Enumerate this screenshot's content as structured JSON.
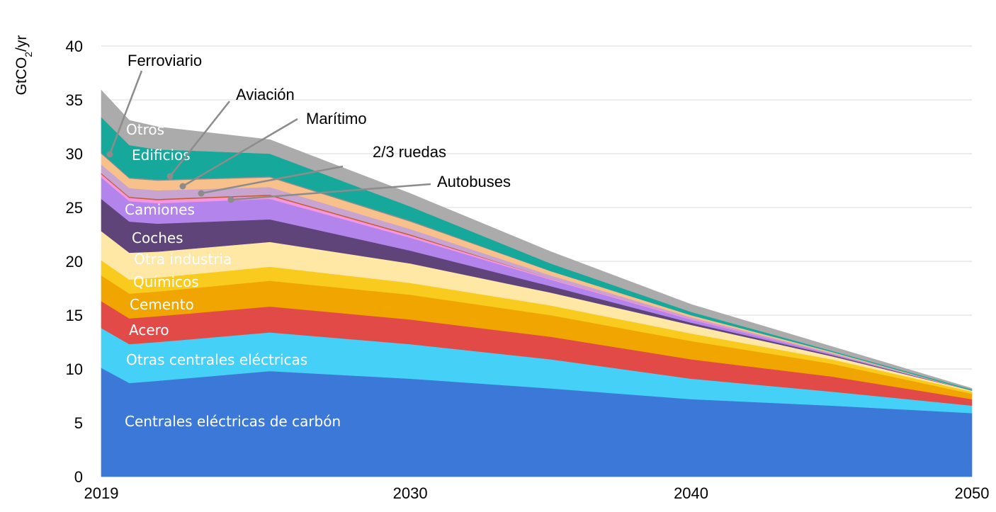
{
  "chart_data": {
    "type": "area",
    "stacked": true,
    "ylabel": "GtCO2/yr",
    "ylim": [
      0,
      40
    ],
    "yticks": [
      "0",
      "5",
      "10",
      "15",
      "20",
      "25",
      "30",
      "35",
      "40"
    ],
    "xlim": [
      2019,
      2050
    ],
    "xticks": [
      "2019",
      "2030",
      "2040",
      "2050"
    ],
    "grid": "horizontal",
    "x": [
      2019,
      2020,
      2021,
      2025,
      2030,
      2035,
      2040,
      2045,
      2050
    ],
    "series": [
      {
        "name": "Centrales eléctricas de carbón",
        "color": "#3C78D8",
        "values": [
          10.1,
          8.7,
          8.9,
          9.8,
          9.1,
          8.2,
          7.2,
          6.6,
          5.9
        ]
      },
      {
        "name": "Otras centrales eléctricas",
        "color": "#45D0F8",
        "values": [
          3.7,
          3.6,
          3.6,
          3.6,
          3.2,
          2.7,
          1.9,
          1.3,
          0.7
        ]
      },
      {
        "name": "Acero",
        "color": "#E24A48",
        "values": [
          2.5,
          2.4,
          2.4,
          2.4,
          2.3,
          2.1,
          1.8,
          1.4,
          0.6
        ]
      },
      {
        "name": "Cemento",
        "color": "#F0A500",
        "values": [
          2.4,
          2.3,
          2.3,
          2.4,
          2.3,
          2.0,
          1.7,
          1.2,
          0.5
        ]
      },
      {
        "name": "Químicos",
        "color": "#F9CB1F",
        "values": [
          1.4,
          1.3,
          1.3,
          1.3,
          1.1,
          0.9,
          0.7,
          0.4,
          0.2
        ]
      },
      {
        "name": "Otra industria",
        "color": "#FFE7A6",
        "values": [
          2.7,
          2.5,
          2.4,
          2.3,
          1.8,
          1.2,
          0.8,
          0.3,
          0.1
        ]
      },
      {
        "name": "Coches",
        "color": "#5E4478",
        "values": [
          3.0,
          2.9,
          2.6,
          2.1,
          1.2,
          0.6,
          0.2,
          0.1,
          0.0
        ]
      },
      {
        "name": "Camiones",
        "color": "#B384EC",
        "values": [
          2.0,
          1.9,
          1.9,
          1.9,
          1.2,
          0.6,
          0.3,
          0.1,
          0.0
        ]
      },
      {
        "name": "Autobuses",
        "color": "#F596E0",
        "values": [
          0.3,
          0.3,
          0.3,
          0.3,
          0.2,
          0.1,
          0.1,
          0.0,
          0.0
        ]
      },
      {
        "name": "2/3 ruedas",
        "color": "#C55A2A",
        "values": [
          0.1,
          0.1,
          0.1,
          0.1,
          0.1,
          0.0,
          0.0,
          0.0,
          0.0
        ]
      },
      {
        "name": "Marítimo",
        "color": "#C8A4D0",
        "values": [
          0.8,
          0.8,
          0.8,
          0.7,
          0.5,
          0.3,
          0.1,
          0.1,
          0.0
        ]
      },
      {
        "name": "Aviación",
        "color": "#F8C08A",
        "values": [
          1.0,
          0.9,
          0.9,
          0.9,
          0.7,
          0.4,
          0.2,
          0.1,
          0.0
        ]
      },
      {
        "name": "Ferroviario",
        "color": "#8E8E8E",
        "values": [
          0.1,
          0.1,
          0.1,
          0.1,
          0.1,
          0.0,
          0.0,
          0.0,
          0.0
        ]
      },
      {
        "name": "Edificios",
        "color": "#16A89A",
        "values": [
          3.3,
          3.0,
          2.8,
          2.1,
          1.3,
          0.7,
          0.3,
          0.1,
          0.1
        ]
      },
      {
        "name": "Otros",
        "color": "#ABABAB",
        "values": [
          2.5,
          2.3,
          2.1,
          1.3,
          1.2,
          1.1,
          0.7,
          0.4,
          0.1
        ]
      }
    ],
    "labels": {
      "inside": [
        "Otros",
        "Edificios",
        "Camiones",
        "Coches",
        "Otra industria",
        "Químicos",
        "Cemento",
        "Acero",
        "Otras centrales eléctricas",
        "Centrales eléctricas de carbón"
      ],
      "callouts": [
        "Ferroviario",
        "Aviación",
        "Marítimo",
        "2/3 ruedas",
        "Autobuses"
      ]
    }
  }
}
